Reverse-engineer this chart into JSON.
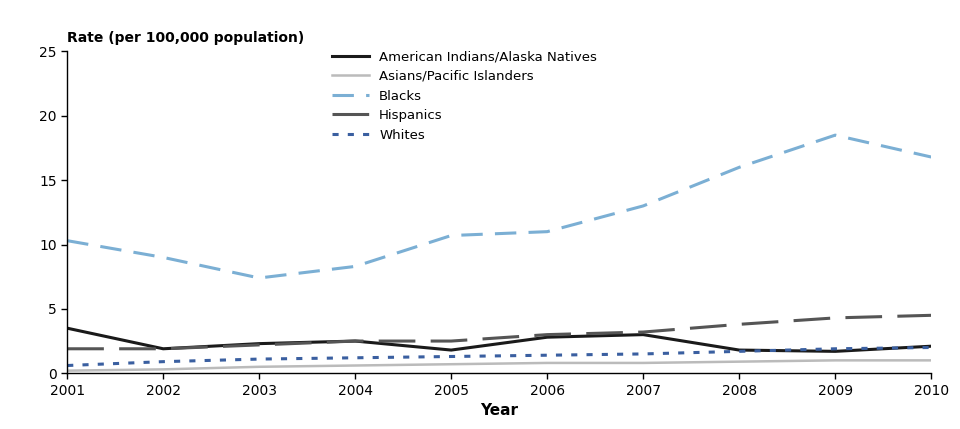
{
  "years": [
    2001,
    2002,
    2003,
    2004,
    2005,
    2006,
    2007,
    2008,
    2009,
    2010
  ],
  "series": {
    "American Indians/Alaska Natives": {
      "values": [
        3.5,
        1.9,
        2.3,
        2.5,
        1.8,
        2.8,
        3.0,
        1.8,
        1.7,
        2.1
      ],
      "color": "#1a1a1a",
      "linestyle": "-",
      "linewidth": 2.2,
      "dashes": null
    },
    "Asians/Pacific Islanders": {
      "values": [
        0.2,
        0.3,
        0.5,
        0.6,
        0.7,
        0.8,
        0.8,
        0.9,
        1.0,
        1.0
      ],
      "color": "#bbbbbb",
      "linestyle": "-",
      "linewidth": 1.8,
      "dashes": null
    },
    "Blacks": {
      "values": [
        10.3,
        9.0,
        7.4,
        8.3,
        10.7,
        11.0,
        13.0,
        16.0,
        18.5,
        16.8
      ],
      "color": "#7bafd4",
      "linestyle": "--",
      "linewidth": 2.2,
      "dashes": [
        7,
        4
      ]
    },
    "Hispanics": {
      "values": [
        1.9,
        1.9,
        2.2,
        2.5,
        2.5,
        3.0,
        3.2,
        3.8,
        4.3,
        4.5
      ],
      "color": "#555555",
      "linestyle": "--",
      "linewidth": 2.2,
      "dashes": [
        12,
        5
      ]
    },
    "Whites": {
      "values": [
        0.6,
        0.9,
        1.1,
        1.2,
        1.3,
        1.4,
        1.5,
        1.7,
        1.9,
        2.0
      ],
      "color": "#3a5fa0",
      "linestyle": ":",
      "linewidth": 2.2,
      "dashes": [
        2,
        3
      ]
    }
  },
  "ylabel_top": "Rate (per 100,000 population)",
  "xlabel": "Year",
  "ylim": [
    0,
    25
  ],
  "yticks": [
    0,
    5,
    10,
    15,
    20,
    25
  ],
  "xticks": [
    2001,
    2002,
    2003,
    2004,
    2005,
    2006,
    2007,
    2008,
    2009,
    2010
  ],
  "legend_order": [
    "American Indians/Alaska Natives",
    "Asians/Pacific Islanders",
    "Blacks",
    "Hispanics",
    "Whites"
  ],
  "bg_color": "#ffffff"
}
